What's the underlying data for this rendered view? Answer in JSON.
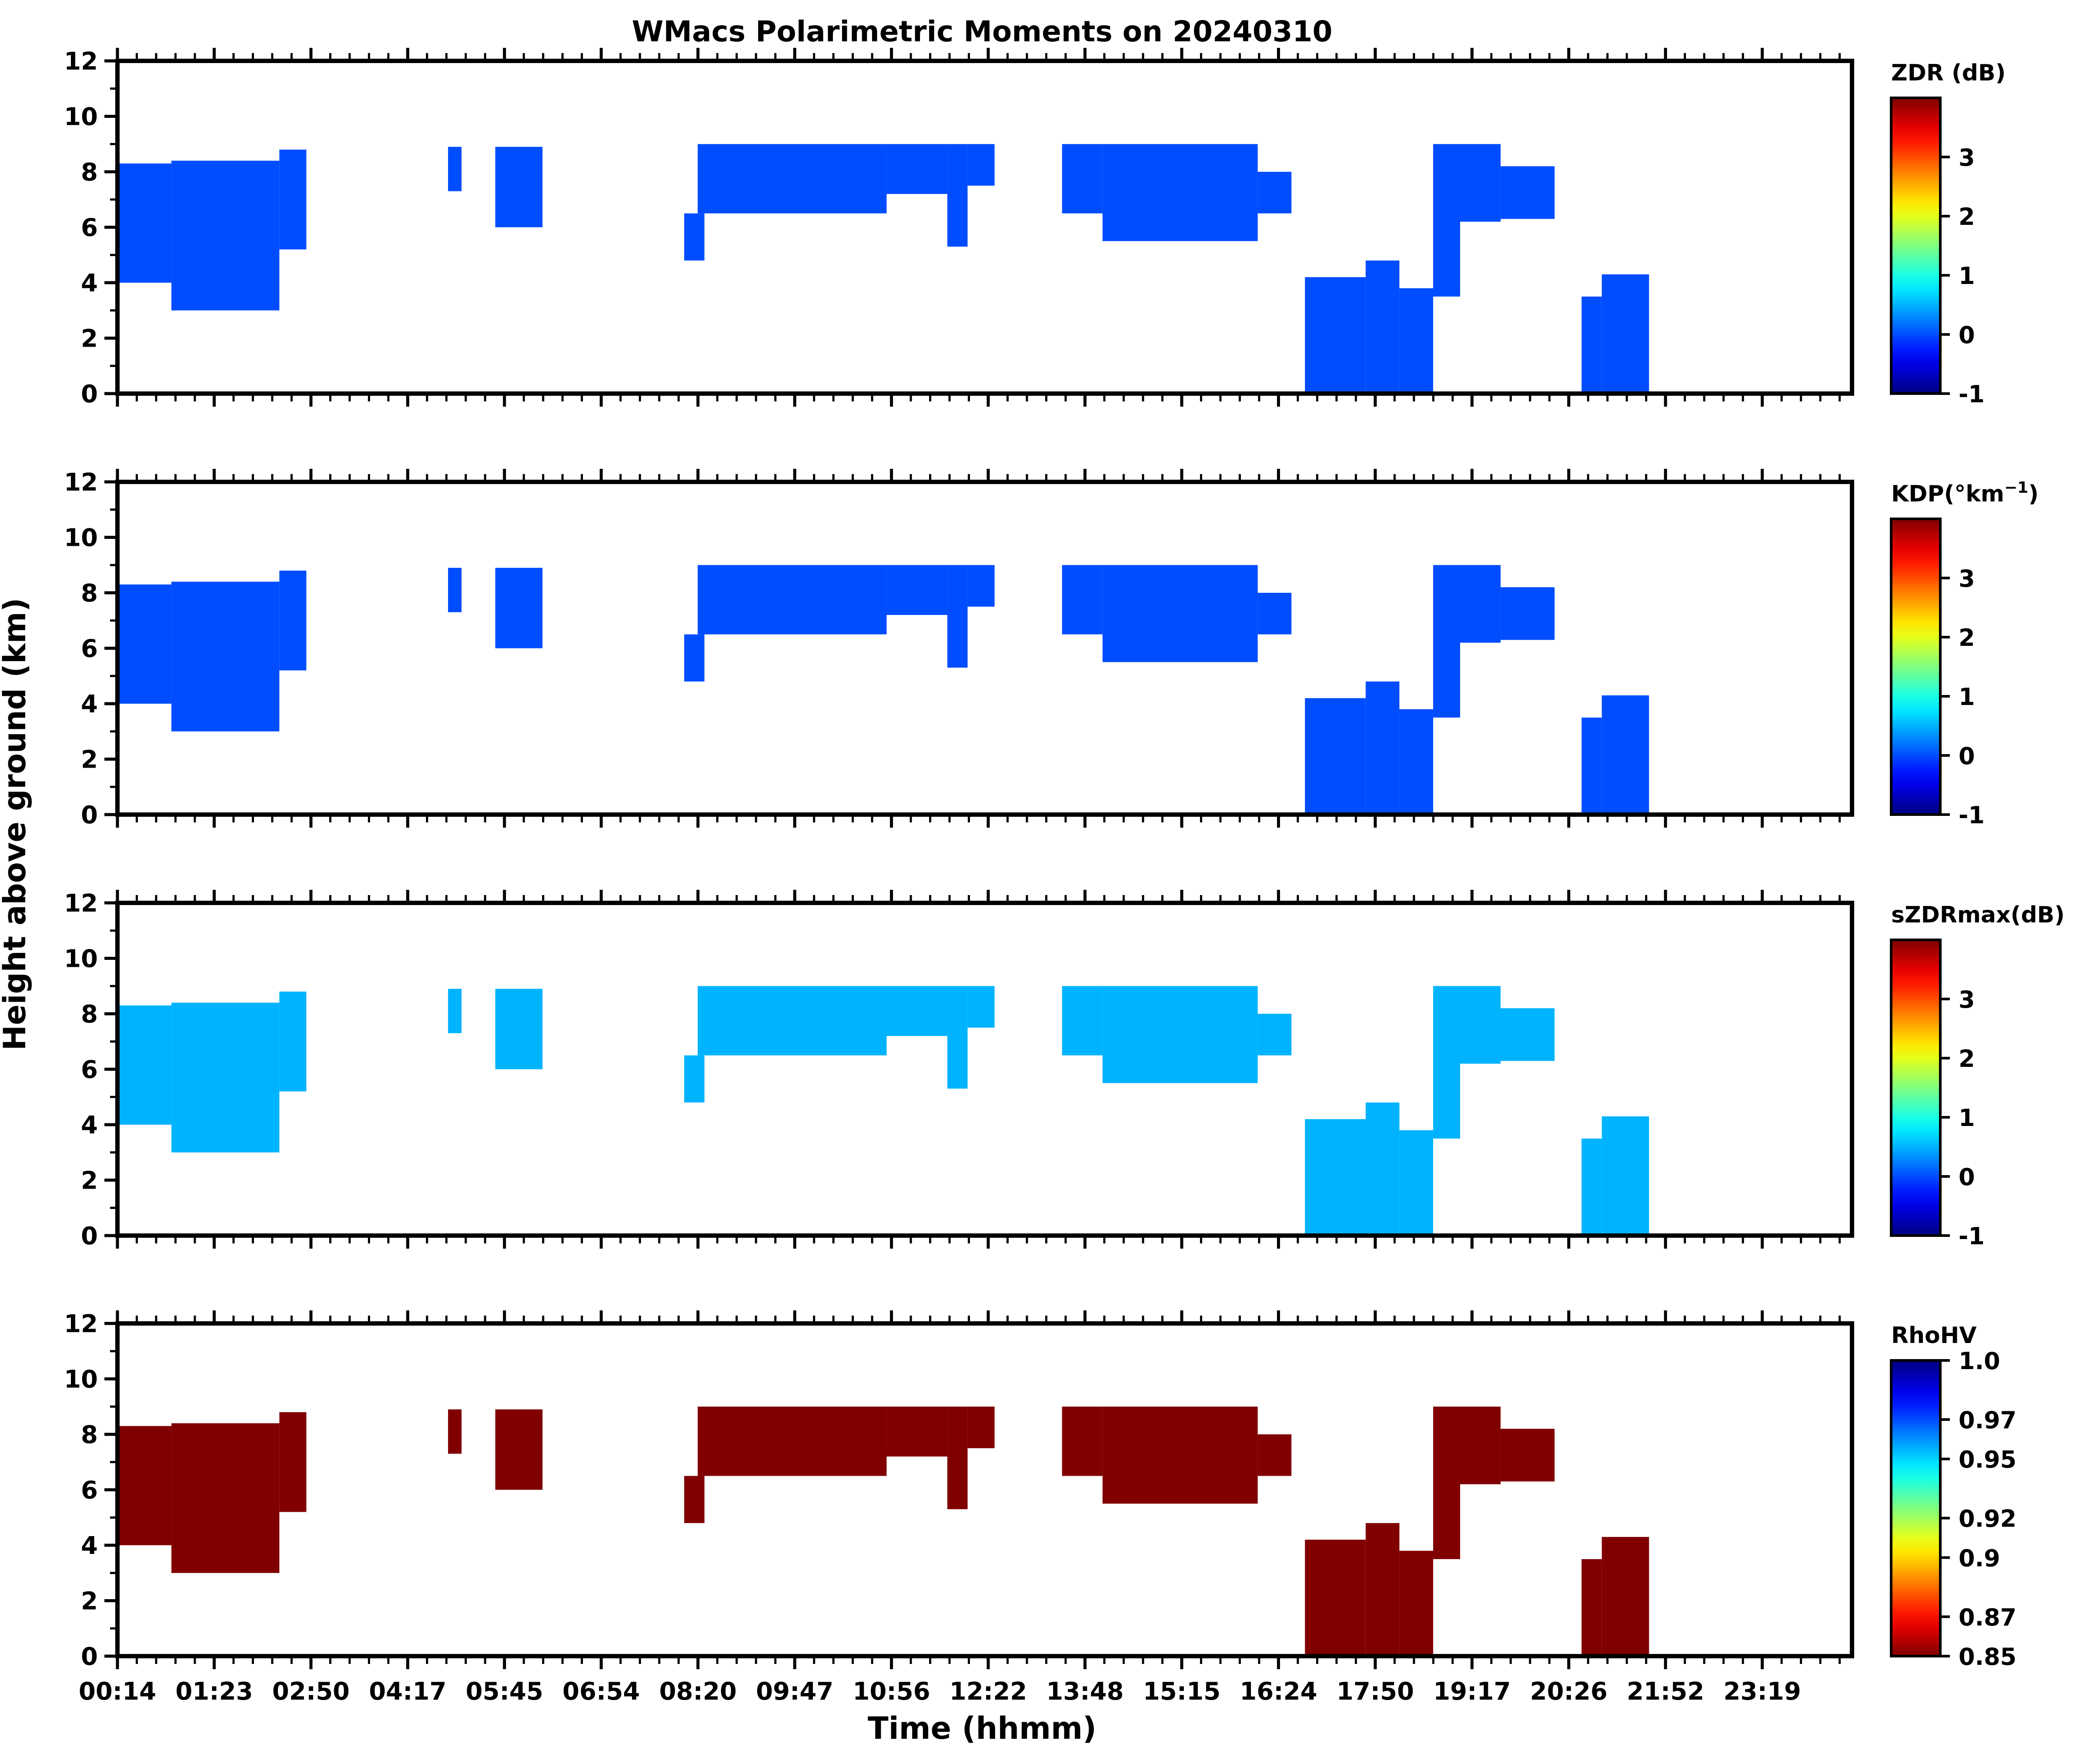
{
  "chart_data": {
    "type": "heatmap",
    "title": "WMacs Polarimetric Moments on 20240310",
    "xlabel": "Time (hhmm)",
    "ylabel": "Height above ground (km)",
    "x_tick_labels": [
      "00:14",
      "01:23",
      "02:50",
      "04:17",
      "05:45",
      "06:54",
      "08:20",
      "09:47",
      "10:56",
      "12:22",
      "13:48",
      "15:15",
      "16:24",
      "17:50",
      "19:17",
      "20:26",
      "21:52",
      "23:19"
    ],
    "y_ticks": [
      0,
      2,
      4,
      6,
      8,
      10,
      12
    ],
    "ylim": [
      0,
      12
    ],
    "panels": [
      {
        "name": "ZDR",
        "colorbar_label": "ZDR (dB)",
        "colormap": "jet",
        "colorbar_range": [
          -1,
          4
        ],
        "colorbar_ticks": [
          "-1",
          "0",
          "1",
          "2",
          "3"
        ],
        "dominant_value": 0.0
      },
      {
        "name": "KDP",
        "colorbar_label": "KDP(°km",
        "colorbar_label_sup": "−1",
        "colorbar_label_end": ")",
        "colormap": "jet",
        "colorbar_range": [
          -1,
          4
        ],
        "colorbar_ticks": [
          "-1",
          "0",
          "1",
          "2",
          "3"
        ],
        "dominant_value": 0.0
      },
      {
        "name": "sZDRmax",
        "colorbar_label": "sZDRmax(dB)",
        "colormap": "jet",
        "colorbar_range": [
          -1,
          4
        ],
        "colorbar_ticks": [
          "-1",
          "0",
          "1",
          "2",
          "3"
        ],
        "dominant_value": 0.5
      },
      {
        "name": "RhoHV",
        "colorbar_label": "RhoHV",
        "colormap": "jet_r",
        "colorbar_range": [
          0.85,
          1.0
        ],
        "colorbar_ticks": [
          "0.85",
          "0.87",
          "0.9",
          "0.92",
          "0.95",
          "0.97",
          "1.0"
        ],
        "dominant_value": 0.85
      }
    ],
    "echo_regions_hours_km": [
      {
        "t0": 0.0,
        "t1": 0.8,
        "h0": 4.0,
        "h1": 8.3
      },
      {
        "t0": 0.8,
        "t1": 2.4,
        "h0": 3.0,
        "h1": 8.4
      },
      {
        "t0": 2.4,
        "t1": 2.8,
        "h0": 5.2,
        "h1": 8.8
      },
      {
        "t0": 4.9,
        "t1": 5.1,
        "h0": 7.3,
        "h1": 8.9
      },
      {
        "t0": 5.6,
        "t1": 6.3,
        "h0": 6.0,
        "h1": 8.9
      },
      {
        "t0": 8.4,
        "t1": 8.7,
        "h0": 4.8,
        "h1": 6.5
      },
      {
        "t0": 8.6,
        "t1": 11.4,
        "h0": 6.5,
        "h1": 9.0
      },
      {
        "t0": 11.4,
        "t1": 12.3,
        "h0": 7.2,
        "h1": 9.0
      },
      {
        "t0": 12.3,
        "t1": 12.6,
        "h0": 5.3,
        "h1": 9.0
      },
      {
        "t0": 12.6,
        "t1": 13.0,
        "h0": 7.5,
        "h1": 9.0
      },
      {
        "t0": 14.0,
        "t1": 14.6,
        "h0": 6.5,
        "h1": 9.0
      },
      {
        "t0": 14.6,
        "t1": 16.9,
        "h0": 5.5,
        "h1": 9.0
      },
      {
        "t0": 16.9,
        "t1": 17.4,
        "h0": 6.5,
        "h1": 8.0
      },
      {
        "t0": 17.6,
        "t1": 18.5,
        "h0": 0.0,
        "h1": 4.2
      },
      {
        "t0": 18.5,
        "t1": 19.0,
        "h0": 0.0,
        "h1": 4.8
      },
      {
        "t0": 19.0,
        "t1": 19.5,
        "h0": 0.0,
        "h1": 3.8
      },
      {
        "t0": 19.5,
        "t1": 19.9,
        "h0": 3.5,
        "h1": 9.0
      },
      {
        "t0": 19.9,
        "t1": 20.5,
        "h0": 6.2,
        "h1": 9.0
      },
      {
        "t0": 20.5,
        "t1": 21.3,
        "h0": 6.3,
        "h1": 8.2
      },
      {
        "t0": 21.7,
        "t1": 22.0,
        "h0": 0.0,
        "h1": 3.5
      },
      {
        "t0": 22.0,
        "t1": 22.7,
        "h0": 0.0,
        "h1": 4.3
      }
    ]
  }
}
